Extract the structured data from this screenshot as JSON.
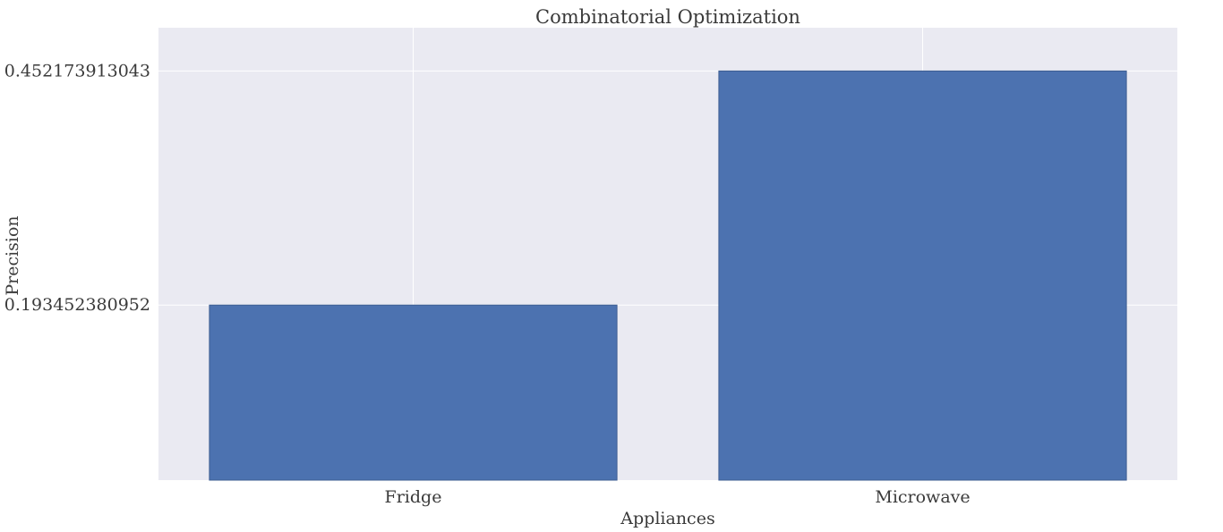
{
  "chart_data": {
    "type": "bar",
    "title": "Combinatorial Optimization",
    "xlabel": "Appliances",
    "ylabel": "Precision",
    "categories": [
      "Fridge",
      "Microwave"
    ],
    "values": [
      0.193452380952,
      0.452173913043
    ],
    "yticks": [
      0.193452380952,
      0.452173913043
    ],
    "ytick_labels": [
      "0.193452380952",
      "0.452173913043"
    ],
    "ylim": [
      0,
      0.5
    ],
    "grid": true,
    "legend": "none",
    "colors": {
      "bar": "#4c72b0",
      "bar_edge": "#3d5d92",
      "plot_background": "#eaeaf2",
      "grid": "#ffffff",
      "text": "#3a3a3a"
    }
  }
}
